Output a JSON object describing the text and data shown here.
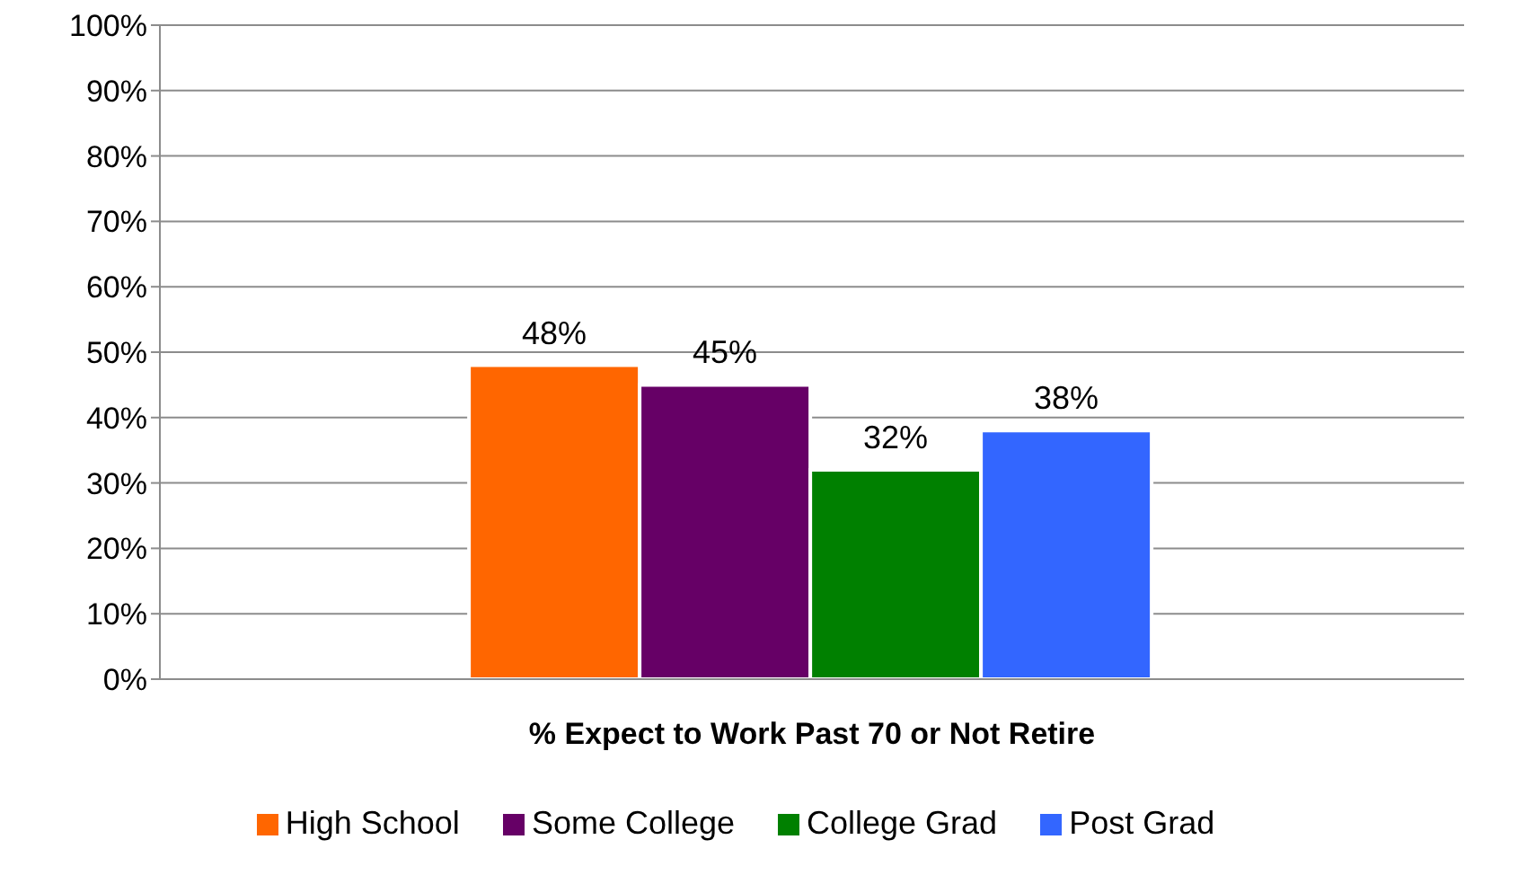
{
  "chart_data": {
    "type": "bar",
    "categories": [
      "% Expect to Work Past 70 or Not Retire"
    ],
    "series": [
      {
        "name": "High School",
        "color": "#ff6600",
        "values": [
          48
        ],
        "value_labels": [
          "48%"
        ]
      },
      {
        "name": "Some College",
        "color": "#660066",
        "values": [
          45
        ],
        "value_labels": [
          "45%"
        ]
      },
      {
        "name": "College Grad",
        "color": "#008000",
        "values": [
          32
        ],
        "value_labels": [
          "32%"
        ]
      },
      {
        "name": "Post Grad",
        "color": "#3366ff",
        "values": [
          38
        ],
        "value_labels": [
          "38%"
        ]
      }
    ],
    "ylim": [
      0,
      100
    ],
    "yticks": [
      {
        "value": 0,
        "label": "0%"
      },
      {
        "value": 10,
        "label": "10%"
      },
      {
        "value": 20,
        "label": "20%"
      },
      {
        "value": 30,
        "label": "30%"
      },
      {
        "value": 40,
        "label": "40%"
      },
      {
        "value": 50,
        "label": "50%"
      },
      {
        "value": 60,
        "label": "60%"
      },
      {
        "value": 70,
        "label": "70%"
      },
      {
        "value": 80,
        "label": "80%"
      },
      {
        "value": 90,
        "label": "90%"
      },
      {
        "value": 100,
        "label": "100%"
      }
    ],
    "grid": "y",
    "legend": "bottom"
  }
}
